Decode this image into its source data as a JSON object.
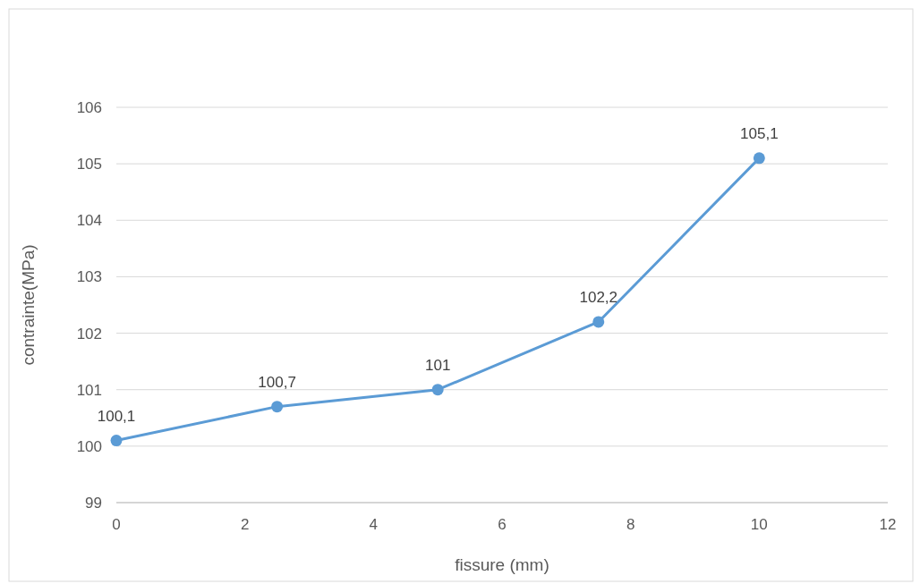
{
  "chart_data": {
    "type": "line",
    "xlabel": "fissure (mm)",
    "ylabel": "contrainte(MPa)",
    "x": [
      0,
      2.5,
      5,
      7.5,
      10
    ],
    "series": [
      {
        "color": "#5b9bd5",
        "values": [
          100.1,
          100.7,
          101,
          102.2,
          105.1
        ],
        "value_labels": [
          "100,1",
          "100,7",
          "101",
          "102,2",
          "105,1"
        ]
      }
    ],
    "xlim": [
      0,
      12
    ],
    "xticks": [
      0,
      2,
      4,
      6,
      8,
      10,
      12
    ],
    "ylim": [
      99,
      106
    ],
    "yticks": [
      99,
      100,
      101,
      102,
      103,
      104,
      105,
      106
    ],
    "grid": "y",
    "marker": "circle",
    "line_style": "solid"
  }
}
